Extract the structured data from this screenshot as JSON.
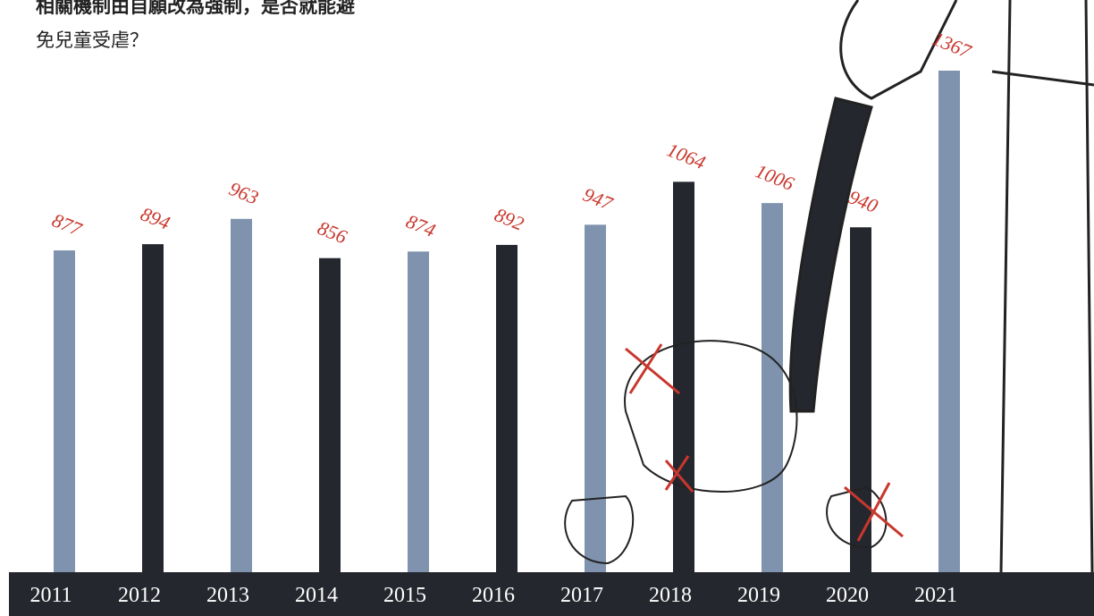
{
  "chart_data": {
    "type": "bar",
    "title_lines": [
      "相關機制由自願改為強制，是否就能避",
      "免兒童受虐？"
    ],
    "categories": [
      "2011",
      "2012",
      "2013",
      "2014",
      "2015",
      "2016",
      "2017",
      "2018",
      "2019",
      "2020",
      "2021"
    ],
    "values": [
      877,
      894,
      963,
      856,
      874,
      892,
      947,
      1064,
      1006,
      940,
      1367
    ],
    "colors": [
      "#7f93ae",
      "#25272e",
      "#7f93ae",
      "#25272e",
      "#7f93ae",
      "#25272e",
      "#7f93ae",
      "#25272e",
      "#7f93ae",
      "#25272e",
      "#7f93ae"
    ],
    "label_color": "#c8372d"
  }
}
